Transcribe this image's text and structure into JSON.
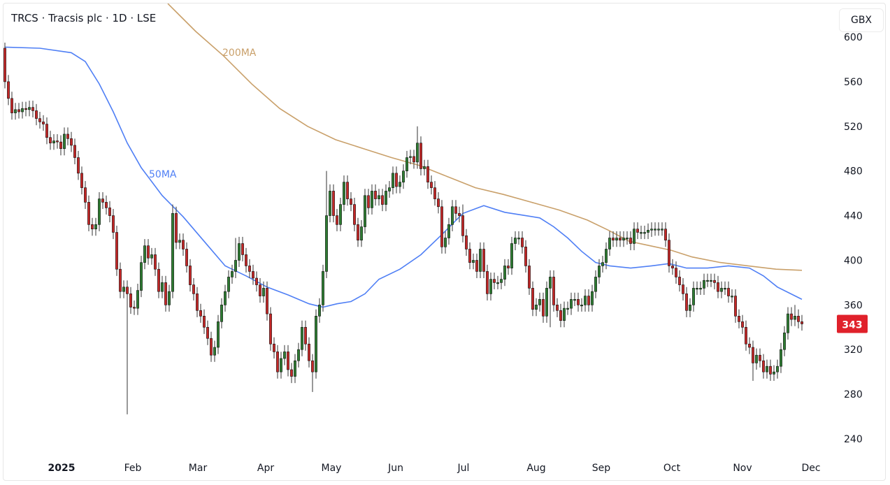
{
  "header": {
    "title": "TRCS · Tracsis plc · 1D · LSE",
    "currency_button": "GBX"
  },
  "chart_data": {
    "type": "candlestick",
    "title": "TRCS · Tracsis plc · 1D · LSE",
    "ylim": [
      220,
      610
    ],
    "y_ticks": [
      "600",
      "560",
      "520",
      "480",
      "440",
      "400",
      "360",
      "320",
      "280",
      "240"
    ],
    "x_ticks": [
      {
        "label": "2025",
        "index": 16.2,
        "bold": true
      },
      {
        "label": "Feb",
        "index": 36.6
      },
      {
        "label": "Mar",
        "index": 55.2
      },
      {
        "label": "Apr",
        "index": 74.6
      },
      {
        "label": "May",
        "index": 93.4
      },
      {
        "label": "Jun",
        "index": 111.8
      },
      {
        "label": "Jul",
        "index": 131.2
      },
      {
        "label": "Aug",
        "index": 152
      },
      {
        "label": "Sep",
        "index": 170.6
      },
      {
        "label": "Oct",
        "index": 190.8
      },
      {
        "label": "Nov",
        "index": 211
      },
      {
        "label": "Dec",
        "index": 230.6
      }
    ],
    "last_price": "343",
    "colors": {
      "up": "#2e7d32",
      "down": "#c62828",
      "ma50": "#4f7ff5",
      "ma200": "#c9a06a",
      "last": "#e0212b"
    },
    "first_open": 590,
    "close": [
      560,
      545,
      532,
      535,
      533,
      536,
      535,
      537,
      534,
      527,
      524,
      522,
      510,
      505,
      507,
      506,
      500,
      513,
      509,
      503,
      492,
      478,
      465,
      452,
      432,
      428,
      432,
      455,
      452,
      447,
      440,
      425,
      392,
      372,
      376,
      370,
      358,
      357,
      373,
      398,
      413,
      402,
      405,
      392,
      372,
      380,
      360,
      372,
      442,
      416,
      418,
      410,
      395,
      378,
      370,
      355,
      350,
      340,
      330,
      315,
      322,
      345,
      360,
      372,
      385,
      390,
      400,
      415,
      405,
      395,
      390,
      384,
      378,
      368,
      375,
      352,
      325,
      318,
      300,
      312,
      318,
      302,
      296,
      310,
      320,
      340,
      325,
      310,
      300,
      350,
      360,
      390,
      440,
      462,
      440,
      432,
      450,
      470,
      455,
      450,
      432,
      418,
      430,
      458,
      447,
      462,
      455,
      458,
      450,
      462,
      465,
      478,
      466,
      470,
      480,
      492,
      493,
      488,
      505,
      482,
      484,
      470,
      465,
      455,
      448,
      412,
      420,
      432,
      448,
      442,
      440,
      422,
      410,
      398,
      400,
      390,
      410,
      390,
      370,
      383,
      380,
      380,
      383,
      395,
      393,
      415,
      420,
      420,
      412,
      395,
      375,
      356,
      360,
      365,
      350,
      375,
      385,
      360,
      355,
      346,
      357,
      357,
      365,
      365,
      360,
      360,
      368,
      360,
      372,
      385,
      395,
      398,
      410,
      420,
      418,
      420,
      418,
      420,
      420,
      415,
      428,
      425,
      425,
      425,
      427,
      428,
      428,
      428,
      428,
      418,
      395,
      393,
      385,
      378,
      370,
      355,
      360,
      375,
      375,
      375,
      382,
      382,
      382,
      380,
      372,
      375,
      375,
      368,
      368,
      350,
      345,
      340,
      325,
      322,
      308,
      315,
      310,
      300,
      305,
      298,
      300,
      305,
      320,
      335,
      352,
      347,
      350,
      345,
      343
    ],
    "wick_pad": 6,
    "high_overrides": {
      "0": 595,
      "48": 450,
      "66": 420,
      "92": 480,
      "118": 520,
      "131": 450,
      "226": 360
    },
    "low_overrides": {
      "35": 262,
      "88": 282,
      "101": 412,
      "156": 340,
      "214": 292
    },
    "ma_series": [
      {
        "name": "50MA",
        "label": "50MA",
        "points": [
          [
            0,
            591
          ],
          [
            10,
            590
          ],
          [
            19,
            586
          ],
          [
            23,
            578
          ],
          [
            27,
            558
          ],
          [
            31,
            533
          ],
          [
            35,
            505
          ],
          [
            39,
            483
          ],
          [
            45,
            458
          ],
          [
            51,
            439
          ],
          [
            57,
            417
          ],
          [
            63,
            395
          ],
          [
            69,
            386
          ],
          [
            75,
            376
          ],
          [
            81,
            369
          ],
          [
            87,
            361
          ],
          [
            91,
            358
          ],
          [
            95,
            361
          ],
          [
            99,
            363
          ],
          [
            103,
            370
          ],
          [
            107,
            383
          ],
          [
            113,
            392
          ],
          [
            119,
            405
          ],
          [
            125,
            423
          ],
          [
            131,
            442
          ],
          [
            137,
            449
          ],
          [
            143,
            443
          ],
          [
            149,
            440
          ],
          [
            153,
            438
          ],
          [
            157,
            430
          ],
          [
            161,
            420
          ],
          [
            165,
            408
          ],
          [
            169,
            398
          ],
          [
            173,
            395
          ],
          [
            179,
            393
          ],
          [
            185,
            395
          ],
          [
            190,
            397
          ],
          [
            195,
            393
          ],
          [
            201,
            393
          ],
          [
            207,
            395
          ],
          [
            213,
            393
          ],
          [
            217,
            386
          ],
          [
            221,
            376
          ],
          [
            228,
            365
          ]
        ]
      },
      {
        "name": "200MA",
        "label": "200MA",
        "points": [
          [
            46.6,
            630
          ],
          [
            54.6,
            605
          ],
          [
            62.6,
            583
          ],
          [
            70.6,
            558
          ],
          [
            78.6,
            536
          ],
          [
            86.6,
            520
          ],
          [
            94.6,
            508
          ],
          [
            102.6,
            500
          ],
          [
            110.6,
            492
          ],
          [
            118.6,
            485
          ],
          [
            126.6,
            475
          ],
          [
            134.6,
            465
          ],
          [
            142.6,
            459
          ],
          [
            150.6,
            452
          ],
          [
            158.6,
            445
          ],
          [
            166.6,
            436
          ],
          [
            172.6,
            427
          ],
          [
            178.6,
            417
          ],
          [
            184.6,
            413
          ],
          [
            190.6,
            409
          ],
          [
            196.6,
            403
          ],
          [
            204.6,
            398
          ],
          [
            212.6,
            395
          ],
          [
            220.6,
            392
          ],
          [
            228,
            391
          ]
        ]
      }
    ]
  }
}
